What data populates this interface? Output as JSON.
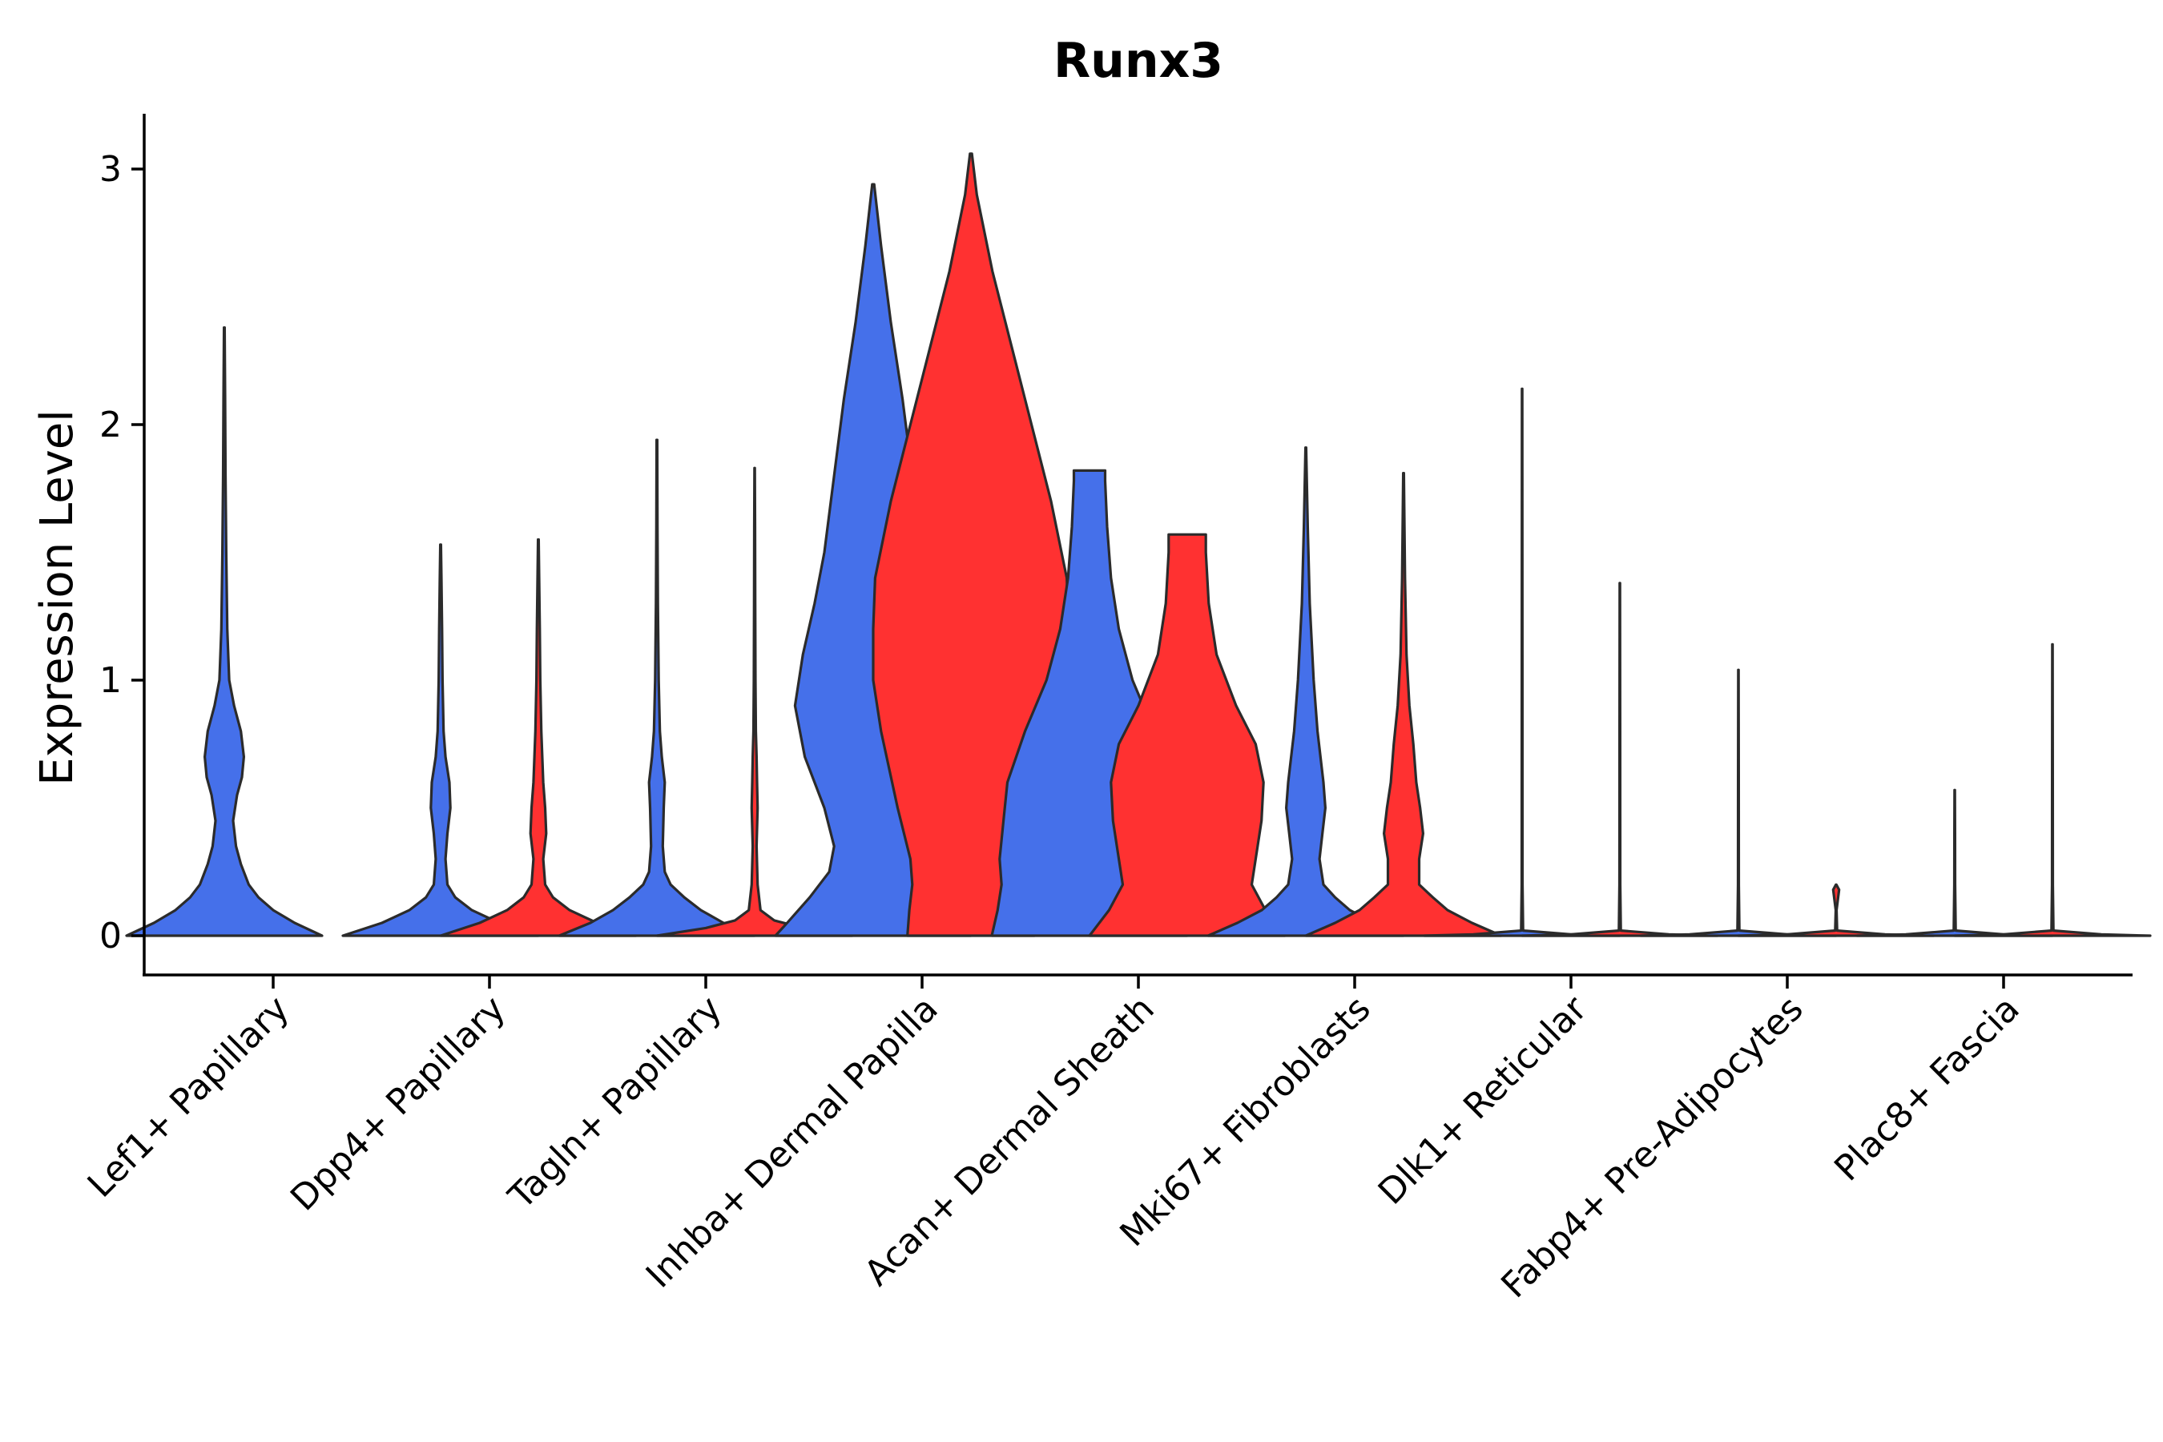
{
  "chart_data": {
    "type": "violin",
    "title": "Runx3",
    "xlabel": "",
    "ylabel": "Expression Level",
    "ylim": [
      -0.15,
      3.2
    ],
    "yticks": [
      0,
      1,
      2,
      3
    ],
    "ytick_labels": [
      "0",
      "1",
      "2",
      "3"
    ],
    "series_colors": {
      "blue": "#4570EA",
      "red": "#FF3131"
    },
    "categories": [
      "Lef1+ Papillary",
      "Dpp4+ Papillary",
      "Tagln+ Papillary",
      "Inhba+ Dermal Papilla",
      "Acan+ Dermal Sheath",
      "Mki67+ Fibroblasts",
      "Dlk1+ Reticular",
      "Fabp4+ Pre-Adipocytes",
      "Plac8+ Fascia"
    ],
    "violins": [
      {
        "category": "Lef1+ Papillary",
        "group": "blue",
        "max": 2.38,
        "profile": [
          [
            0,
            1.0
          ],
          [
            0.05,
            0.72
          ],
          [
            0.1,
            0.5
          ],
          [
            0.15,
            0.35
          ],
          [
            0.2,
            0.25
          ],
          [
            0.28,
            0.17
          ],
          [
            0.35,
            0.12
          ],
          [
            0.45,
            0.09
          ],
          [
            0.55,
            0.13
          ],
          [
            0.62,
            0.18
          ],
          [
            0.7,
            0.2
          ],
          [
            0.8,
            0.17
          ],
          [
            0.9,
            0.1
          ],
          [
            1.0,
            0.05
          ],
          [
            1.2,
            0.03
          ],
          [
            1.5,
            0.02
          ],
          [
            1.8,
            0.012
          ],
          [
            2.1,
            0.008
          ],
          [
            2.38,
            0.003
          ]
        ]
      },
      {
        "category": "Dpp4+ Papillary",
        "group": "blue",
        "max": 1.53,
        "profile": [
          [
            0,
            1.0
          ],
          [
            0.05,
            0.6
          ],
          [
            0.1,
            0.32
          ],
          [
            0.15,
            0.15
          ],
          [
            0.2,
            0.07
          ],
          [
            0.3,
            0.05
          ],
          [
            0.4,
            0.07
          ],
          [
            0.5,
            0.1
          ],
          [
            0.6,
            0.09
          ],
          [
            0.7,
            0.05
          ],
          [
            0.8,
            0.03
          ],
          [
            1.0,
            0.02
          ],
          [
            1.2,
            0.015
          ],
          [
            1.4,
            0.008
          ],
          [
            1.53,
            0.003
          ]
        ]
      },
      {
        "category": "Dpp4+ Papillary",
        "group": "red",
        "max": 1.55,
        "profile": [
          [
            0,
            1.0
          ],
          [
            0.05,
            0.6
          ],
          [
            0.1,
            0.32
          ],
          [
            0.15,
            0.15
          ],
          [
            0.2,
            0.07
          ],
          [
            0.3,
            0.05
          ],
          [
            0.4,
            0.08
          ],
          [
            0.5,
            0.07
          ],
          [
            0.6,
            0.05
          ],
          [
            0.7,
            0.04
          ],
          [
            0.8,
            0.03
          ],
          [
            1.0,
            0.02
          ],
          [
            1.2,
            0.015
          ],
          [
            1.4,
            0.008
          ],
          [
            1.55,
            0.003
          ]
        ]
      },
      {
        "category": "Tagln+ Papillary",
        "group": "blue",
        "max": 1.94,
        "profile": [
          [
            0,
            1.0
          ],
          [
            0.05,
            0.68
          ],
          [
            0.1,
            0.45
          ],
          [
            0.15,
            0.28
          ],
          [
            0.2,
            0.14
          ],
          [
            0.25,
            0.08
          ],
          [
            0.35,
            0.06
          ],
          [
            0.5,
            0.07
          ],
          [
            0.6,
            0.08
          ],
          [
            0.7,
            0.05
          ],
          [
            0.8,
            0.03
          ],
          [
            1.0,
            0.018
          ],
          [
            1.3,
            0.01
          ],
          [
            1.6,
            0.006
          ],
          [
            1.94,
            0.003
          ]
        ]
      },
      {
        "category": "Tagln+ Papillary",
        "group": "red",
        "max": 1.83,
        "profile": [
          [
            0,
            1.0
          ],
          [
            0.03,
            0.5
          ],
          [
            0.06,
            0.2
          ],
          [
            0.1,
            0.06
          ],
          [
            0.2,
            0.03
          ],
          [
            0.35,
            0.02
          ],
          [
            0.5,
            0.03
          ],
          [
            0.6,
            0.025
          ],
          [
            0.7,
            0.02
          ],
          [
            0.8,
            0.012
          ],
          [
            1.0,
            0.008
          ],
          [
            1.3,
            0.006
          ],
          [
            1.6,
            0.004
          ],
          [
            1.83,
            0.002
          ]
        ]
      },
      {
        "category": "Inhba+ Dermal Papilla",
        "group": "blue",
        "max": 2.94,
        "profile": [
          [
            0,
            1.0
          ],
          [
            0.05,
            0.88
          ],
          [
            0.15,
            0.65
          ],
          [
            0.25,
            0.45
          ],
          [
            0.35,
            0.4
          ],
          [
            0.5,
            0.5
          ],
          [
            0.7,
            0.7
          ],
          [
            0.9,
            0.8
          ],
          [
            1.1,
            0.72
          ],
          [
            1.3,
            0.6
          ],
          [
            1.5,
            0.5
          ],
          [
            1.8,
            0.4
          ],
          [
            2.1,
            0.3
          ],
          [
            2.4,
            0.18
          ],
          [
            2.7,
            0.08
          ],
          [
            2.94,
            0.01
          ]
        ]
      },
      {
        "category": "Inhba+ Dermal Papilla",
        "group": "red",
        "max": 3.06,
        "profile": [
          [
            0,
            0.65
          ],
          [
            0.1,
            0.63
          ],
          [
            0.2,
            0.6
          ],
          [
            0.3,
            0.62
          ],
          [
            0.5,
            0.75
          ],
          [
            0.8,
            0.92
          ],
          [
            1.0,
            1.0
          ],
          [
            1.2,
            1.0
          ],
          [
            1.4,
            0.98
          ],
          [
            1.7,
            0.82
          ],
          [
            2.0,
            0.62
          ],
          [
            2.3,
            0.42
          ],
          [
            2.6,
            0.22
          ],
          [
            2.9,
            0.06
          ],
          [
            3.06,
            0.01
          ]
        ]
      },
      {
        "category": "Acan+ Dermal Sheath",
        "group": "blue",
        "max": 1.82,
        "profile": [
          [
            0,
            1.0
          ],
          [
            0.1,
            0.94
          ],
          [
            0.2,
            0.9
          ],
          [
            0.3,
            0.92
          ],
          [
            0.45,
            0.88
          ],
          [
            0.6,
            0.84
          ],
          [
            0.8,
            0.66
          ],
          [
            1.0,
            0.44
          ],
          [
            1.2,
            0.3
          ],
          [
            1.4,
            0.22
          ],
          [
            1.6,
            0.18
          ],
          [
            1.78,
            0.16
          ],
          [
            1.82,
            0.16
          ]
        ]
      },
      {
        "category": "Acan+ Dermal Sheath",
        "group": "red",
        "max": 1.57,
        "profile": [
          [
            0,
            1.0
          ],
          [
            0.1,
            0.8
          ],
          [
            0.2,
            0.66
          ],
          [
            0.3,
            0.7
          ],
          [
            0.45,
            0.76
          ],
          [
            0.6,
            0.78
          ],
          [
            0.75,
            0.7
          ],
          [
            0.9,
            0.5
          ],
          [
            1.1,
            0.3
          ],
          [
            1.3,
            0.22
          ],
          [
            1.5,
            0.19
          ],
          [
            1.57,
            0.19
          ]
        ]
      },
      {
        "category": "Mki67+ Fibroblasts",
        "group": "blue",
        "max": 1.91,
        "profile": [
          [
            0,
            1.0
          ],
          [
            0.05,
            0.7
          ],
          [
            0.1,
            0.45
          ],
          [
            0.15,
            0.3
          ],
          [
            0.2,
            0.18
          ],
          [
            0.3,
            0.14
          ],
          [
            0.4,
            0.17
          ],
          [
            0.5,
            0.2
          ],
          [
            0.6,
            0.18
          ],
          [
            0.8,
            0.12
          ],
          [
            1.0,
            0.08
          ],
          [
            1.3,
            0.04
          ],
          [
            1.6,
            0.02
          ],
          [
            1.91,
            0.003
          ]
        ]
      },
      {
        "category": "Mki67+ Fibroblasts",
        "group": "red",
        "max": 1.81,
        "profile": [
          [
            0,
            1.0
          ],
          [
            0.05,
            0.7
          ],
          [
            0.1,
            0.45
          ],
          [
            0.15,
            0.3
          ],
          [
            0.2,
            0.16
          ],
          [
            0.3,
            0.16
          ],
          [
            0.4,
            0.2
          ],
          [
            0.5,
            0.17
          ],
          [
            0.6,
            0.13
          ],
          [
            0.75,
            0.1
          ],
          [
            0.9,
            0.06
          ],
          [
            1.1,
            0.03
          ],
          [
            1.4,
            0.015
          ],
          [
            1.81,
            0.003
          ]
        ]
      },
      {
        "category": "Dlk1+ Reticular",
        "group": "blue",
        "max": 2.14,
        "profile": [
          [
            0,
            1.0
          ],
          [
            0.005,
            0.5
          ],
          [
            0.02,
            0.01
          ],
          [
            0.2,
            0.004
          ],
          [
            1.0,
            0.003
          ],
          [
            2.14,
            0.002
          ]
        ]
      },
      {
        "category": "Dlk1+ Reticular",
        "group": "red",
        "max": 1.38,
        "profile": [
          [
            0,
            1.0
          ],
          [
            0.005,
            0.5
          ],
          [
            0.02,
            0.01
          ],
          [
            0.2,
            0.004
          ],
          [
            0.8,
            0.003
          ],
          [
            1.38,
            0.002
          ]
        ]
      },
      {
        "category": "Fabp4+ Pre-Adipocytes",
        "group": "blue",
        "max": 1.04,
        "profile": [
          [
            0,
            1.0
          ],
          [
            0.005,
            0.5
          ],
          [
            0.02,
            0.01
          ],
          [
            0.2,
            0.004
          ],
          [
            0.6,
            0.003
          ],
          [
            1.04,
            0.002
          ]
        ]
      },
      {
        "category": "Fabp4+ Pre-Adipocytes",
        "group": "red",
        "max": 0.2,
        "profile": [
          [
            0,
            1.0
          ],
          [
            0.005,
            0.5
          ],
          [
            0.02,
            0.01
          ],
          [
            0.1,
            0.004
          ],
          [
            0.18,
            0.03
          ],
          [
            0.2,
            0.002
          ]
        ]
      },
      {
        "category": "Plac8+ Fascia",
        "group": "blue",
        "max": 0.57,
        "profile": [
          [
            0,
            1.0
          ],
          [
            0.005,
            0.5
          ],
          [
            0.02,
            0.01
          ],
          [
            0.2,
            0.004
          ],
          [
            0.4,
            0.003
          ],
          [
            0.57,
            0.002
          ]
        ]
      },
      {
        "category": "Plac8+ Fascia",
        "group": "red",
        "max": 1.14,
        "profile": [
          [
            0,
            1.0
          ],
          [
            0.005,
            0.5
          ],
          [
            0.02,
            0.01
          ],
          [
            0.2,
            0.004
          ],
          [
            0.6,
            0.003
          ],
          [
            1.14,
            0.002
          ]
        ]
      }
    ]
  }
}
